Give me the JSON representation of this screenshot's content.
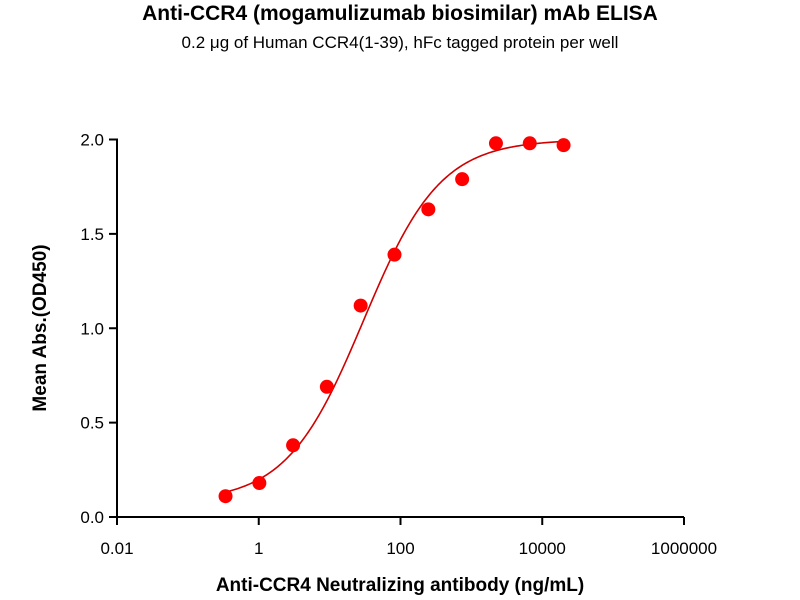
{
  "chart_data": {
    "type": "scatter",
    "title": "Anti-CCR4 (mogamulizumab biosimilar) mAb ELISA",
    "subtitle": "0.2 μg of Human CCR4(1-39), hFc tagged protein per well",
    "xlabel": "Anti-CCR4 Neutralizing antibody (ng/mL)",
    "ylabel": "Mean Abs.(OD450)",
    "xscale": "log",
    "xlim": [
      0.01,
      1000000
    ],
    "ylim": [
      0,
      2.0
    ],
    "xticks": [
      0.01,
      1,
      100,
      10000,
      1000000
    ],
    "xtick_labels": [
      "0.01",
      "1",
      "100",
      "10000",
      "1000000"
    ],
    "yticks": [
      0,
      0.5,
      1.0,
      1.5,
      2.0
    ],
    "ytick_labels": [
      "0.0",
      "0.5",
      "1.0",
      "1.5",
      "2.0"
    ],
    "grid": false,
    "series": [
      {
        "name": "Anti-CCR4",
        "color": "#ff0000",
        "x": [
          0.34,
          1.02,
          3.05,
          9.14,
          27.4,
          82.3,
          247,
          741,
          2222,
          6667,
          20000
        ],
        "y": [
          0.11,
          0.18,
          0.38,
          0.69,
          1.12,
          1.39,
          1.63,
          1.79,
          1.98,
          1.98,
          1.97
        ]
      }
    ],
    "fit": {
      "model": "4PL",
      "bottom": 0.08,
      "top": 2.0,
      "ec50": 30,
      "hill": 0.8,
      "color": "#d00000"
    }
  }
}
